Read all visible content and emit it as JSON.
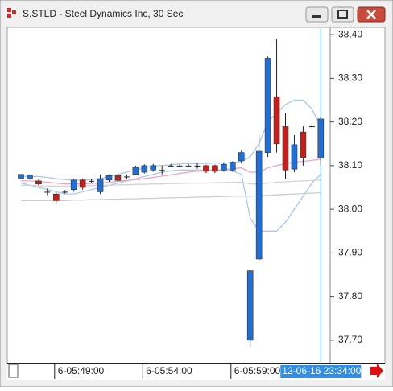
{
  "window_title": "S.STLD - Steel Dynamics Inc, 30 Sec",
  "chart_data": {
    "type": "candlestick",
    "categories": [
      null,
      null,
      null,
      null,
      "6-05:49:00",
      null,
      null,
      null,
      null,
      null,
      null,
      null,
      null,
      null,
      "6-05:54:00",
      null,
      null,
      null,
      null,
      null,
      null,
      null,
      null,
      null,
      "6-05:59:00",
      null,
      null,
      null,
      null,
      null,
      null,
      null,
      null,
      null,
      "12-06-16 23:34:00"
    ],
    "open": [
      38.07,
      38.07,
      38.065,
      38.04,
      38.035,
      38.04,
      38.045,
      38.067,
      38.065,
      38.04,
      38.067,
      38.077,
      38.075,
      38.08,
      38.085,
      38.09,
      38.09,
      38.1,
      38.1,
      38.1,
      38.1,
      38.1,
      38.1,
      38.09,
      38.09,
      38.111,
      37.7,
      37.886,
      38.13,
      38.258,
      38.19,
      38.092,
      38.177,
      38.19,
      38.118
    ],
    "close": [
      38.08,
      38.078,
      38.058,
      38.04,
      38.02,
      38.04,
      38.067,
      38.05,
      38.065,
      38.07,
      38.077,
      38.066,
      38.075,
      38.096,
      38.1,
      38.1,
      38.09,
      38.1,
      38.1,
      38.1,
      38.1,
      38.087,
      38.087,
      38.103,
      38.108,
      38.13,
      37.859,
      38.133,
      38.346,
      38.15,
      38.09,
      38.148,
      38.118,
      38.19,
      38.207
    ],
    "high": [
      38.08,
      38.08,
      38.068,
      38.048,
      38.038,
      38.044,
      38.07,
      38.07,
      38.07,
      38.08,
      38.08,
      38.08,
      38.08,
      38.1,
      38.103,
      38.104,
      38.1,
      38.104,
      38.103,
      38.104,
      38.105,
      38.102,
      38.102,
      38.108,
      38.11,
      38.135,
      37.86,
      38.17,
      38.35,
      38.39,
      38.22,
      38.17,
      38.19,
      38.195,
      38.21
    ],
    "low": [
      38.07,
      38.068,
      38.055,
      38.032,
      38.015,
      38.036,
      38.04,
      38.045,
      38.06,
      38.035,
      38.063,
      38.062,
      38.07,
      38.078,
      38.082,
      38.086,
      38.08,
      38.096,
      38.096,
      38.096,
      38.093,
      38.083,
      38.083,
      38.086,
      38.086,
      38.105,
      37.685,
      37.88,
      38.12,
      38.13,
      38.07,
      38.085,
      38.1,
      38.185,
      38.1
    ],
    "up_color": "#1f6fd8",
    "down_color": "#c4201b",
    "overlays": [
      {
        "color": "#a9c8ea",
        "values": [
          38.075,
          38.075,
          38.075,
          38.073,
          38.07,
          38.068,
          38.066,
          38.067,
          38.068,
          38.07,
          38.075,
          38.08,
          38.085,
          38.09,
          38.095,
          38.1,
          38.1,
          38.102,
          38.104,
          38.105,
          38.105,
          38.105,
          38.106,
          38.106,
          38.107,
          38.11,
          38.12,
          38.15,
          38.2,
          38.22,
          38.24,
          38.25,
          38.25,
          38.23,
          38.19
        ]
      },
      {
        "color": "#a9c8ea",
        "values": [
          38.06,
          38.055,
          38.05,
          38.045,
          38.04,
          38.035,
          38.035,
          38.04,
          38.045,
          38.05,
          38.055,
          38.06,
          38.065,
          38.07,
          38.075,
          38.08,
          38.085,
          38.088,
          38.09,
          38.09,
          38.09,
          38.09,
          38.09,
          38.09,
          38.088,
          38.08,
          37.98,
          37.95,
          37.95,
          37.95,
          37.97,
          38.0,
          38.03,
          38.06,
          38.08
        ]
      },
      {
        "color": "#e8a6c6",
        "values": [
          38.065,
          38.065,
          38.064,
          38.062,
          38.06,
          38.058,
          38.058,
          38.058,
          38.059,
          38.06,
          38.062,
          38.064,
          38.066,
          38.068,
          38.07,
          38.073,
          38.076,
          38.079,
          38.082,
          38.085,
          38.087,
          38.089,
          38.09,
          38.091,
          38.093,
          38.095,
          38.085,
          38.085,
          38.095,
          38.1,
          38.105,
          38.108,
          38.11,
          38.112,
          38.115
        ]
      },
      {
        "color": "#d4d4d4",
        "values": [
          38.055,
          38.055,
          38.054,
          38.053,
          38.053,
          38.053,
          38.053,
          38.054,
          38.054,
          38.055,
          38.055,
          38.056,
          38.056,
          38.057,
          38.057,
          38.058,
          38.058,
          38.059,
          38.059,
          38.06,
          38.06,
          38.06,
          38.061,
          38.061,
          38.062,
          38.062,
          38.058,
          38.058,
          38.06,
          38.062,
          38.063,
          38.064,
          38.065,
          38.066,
          38.067
        ]
      },
      {
        "color": "#cccccc",
        "values": [
          38.02,
          38.02,
          38.02,
          38.02,
          38.02,
          38.02,
          38.021,
          38.021,
          38.022,
          38.022,
          38.023,
          38.023,
          38.024,
          38.024,
          38.025,
          38.025,
          38.026,
          38.026,
          38.027,
          38.027,
          38.028,
          38.028,
          38.029,
          38.029,
          38.03,
          38.03,
          38.03,
          38.031,
          38.032,
          38.033,
          38.034,
          38.035,
          38.036,
          38.037,
          38.038
        ]
      }
    ],
    "ylim": [
      37.65,
      38.415
    ],
    "yticks": [
      {
        "value": 37.7,
        "label": "37.70"
      },
      {
        "value": 37.8,
        "label": "37.80"
      },
      {
        "value": 37.9,
        "label": "37.90"
      },
      {
        "value": 38.0,
        "label": "38.00"
      },
      {
        "value": 38.1,
        "label": "38.10"
      },
      {
        "value": 38.2,
        "label": "38.20"
      },
      {
        "value": 38.3,
        "label": "38.30"
      },
      {
        "value": 38.4,
        "label": "38.40"
      }
    ]
  }
}
